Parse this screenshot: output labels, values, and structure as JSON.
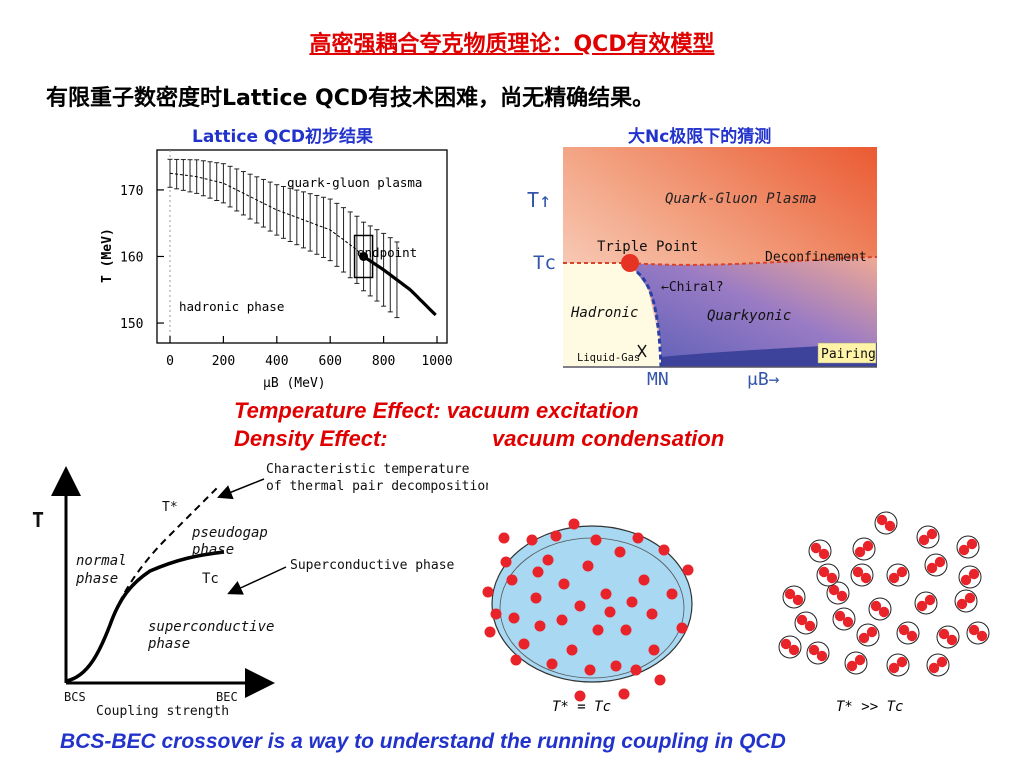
{
  "slide": {
    "title": "高密强耦合夸克物质理论：QCD有效模型",
    "subtitle": "有限重子数密度时Lattice QCD有技术困难，尚无精确结果。",
    "lattice": {
      "caption": "Lattice QCD初步结果",
      "region_qgp": "quark-gluon plasma",
      "region_hadronic": "hadronic phase",
      "endpoint_label": "endpoint",
      "ylabel": "T (MeV)",
      "xlabel": "μB (MeV)",
      "yticks": [
        "170",
        "160",
        "150"
      ],
      "xticks": [
        "0",
        "200",
        "400",
        "600",
        "800",
        "1000"
      ]
    },
    "largenc": {
      "caption": "大Nc极限下的猜测",
      "t_axis": "T↑",
      "tc": "Tc",
      "qgp": "Quark-Gluon Plasma",
      "triple_point": "Triple Point",
      "deconfinement": "Deconfinement",
      "chiral": "←Chiral?",
      "hadronic": "Hadronic",
      "quarkyonic": "Quarkyonic",
      "pairing": "Pairing",
      "liquid_gas": "Liquid-Gas",
      "mn": "MN",
      "mub": "μB→"
    },
    "effects": {
      "temperature": "Temperature Effect:  vacuum excitation",
      "density_label": "Density Effect:",
      "density_value": "vacuum condensation"
    },
    "bcs": {
      "t_axis": "T",
      "char_temp_line1": "Characteristic temperature",
      "char_temp_line2": "of thermal pair decomposition",
      "tstar": "T*",
      "pseudogap_line1": "pseudogap",
      "pseudogap_line2": "phase",
      "normal_line1": "normal",
      "normal_line2": "phase",
      "tc": "Tc",
      "superconductive_phase": "Superconductive phase",
      "super_line1": "superconductive",
      "super_line2": "phase",
      "bcs": "BCS",
      "bec": "BEC",
      "coupling": "Coupling strength"
    },
    "pairs": {
      "label_left": "T* = Tc",
      "label_right": "T* >> Tc"
    },
    "footer": "BCS-BEC crossover is a way to understand the running coupling in QCD"
  },
  "chart_data": [
    {
      "type": "line",
      "title": "Lattice QCD初步结果",
      "xlabel": "μB (MeV)",
      "ylabel": "T (MeV)",
      "xlim": [
        0,
        1050
      ],
      "ylim": [
        147,
        176
      ],
      "x": [
        0,
        100,
        200,
        300,
        400,
        500,
        600,
        700,
        725,
        800,
        900,
        1000
      ],
      "y": [
        172.5,
        172,
        171,
        169,
        167,
        165.5,
        164,
        161,
        160,
        158,
        155,
        151
      ],
      "annotations": [
        "quark-gluon plasma",
        "hadronic phase",
        "endpoint"
      ]
    }
  ]
}
